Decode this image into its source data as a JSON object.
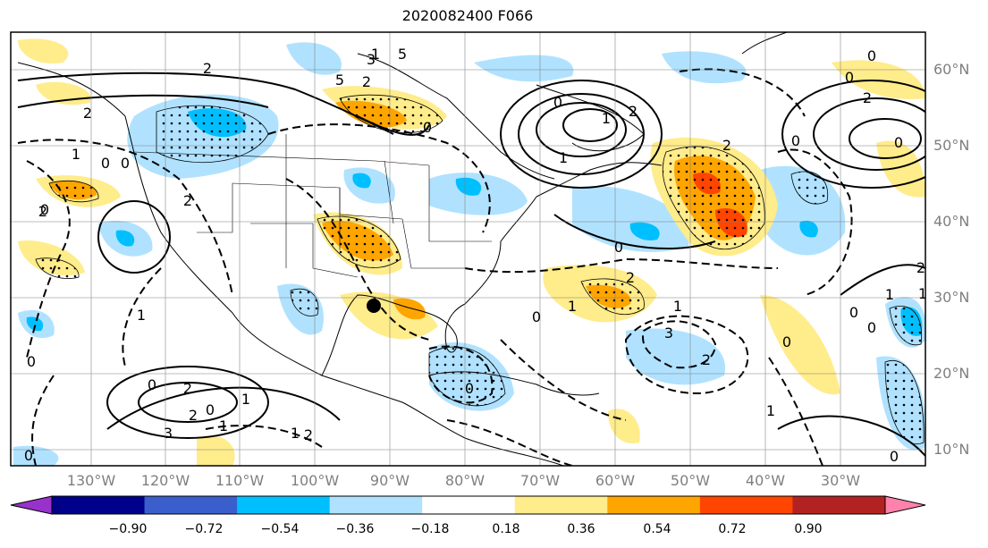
{
  "title": "2020082400 F066",
  "map": {
    "lat_labels": [
      "60°N",
      "50°N",
      "40°N",
      "30°N",
      "20°N",
      "10°N"
    ],
    "lon_labels": [
      "130°W",
      "120°W",
      "110°W",
      "100°W",
      "90°W",
      "80°W",
      "70°W",
      "60°W",
      "50°W",
      "40°W",
      "30°W"
    ],
    "contour_labels": [
      "2",
      "2",
      "0",
      "0",
      "1",
      "0",
      "1",
      "2",
      "2",
      "3",
      "1",
      "2",
      "0",
      "0",
      "1",
      "2",
      "3",
      "5",
      "5",
      "0",
      "1",
      "1",
      "2",
      "0",
      "0",
      "2",
      "1",
      "2",
      "3",
      "2",
      "2",
      "0",
      "0",
      "0",
      "1",
      "0",
      "0",
      "0",
      "1",
      "2",
      "1",
      "0",
      "0",
      "0",
      "1",
      "2",
      "2",
      "0",
      "1",
      "1",
      "0",
      "0"
    ],
    "marker": "storm-center-dot"
  },
  "colorbar": {
    "ticks": [
      "−0.90",
      "−0.72",
      "−0.54",
      "−0.36",
      "−0.18",
      "0.18",
      "0.36",
      "0.54",
      "0.72",
      "0.90"
    ],
    "colors": [
      "#9932cc",
      "#00008b",
      "#3a5fcd",
      "#00bfff",
      "#b0e2ff",
      "#ffffff",
      "#ffec8b",
      "#ffa500",
      "#ff4500",
      "#b22222",
      "#ff82ab"
    ]
  }
}
